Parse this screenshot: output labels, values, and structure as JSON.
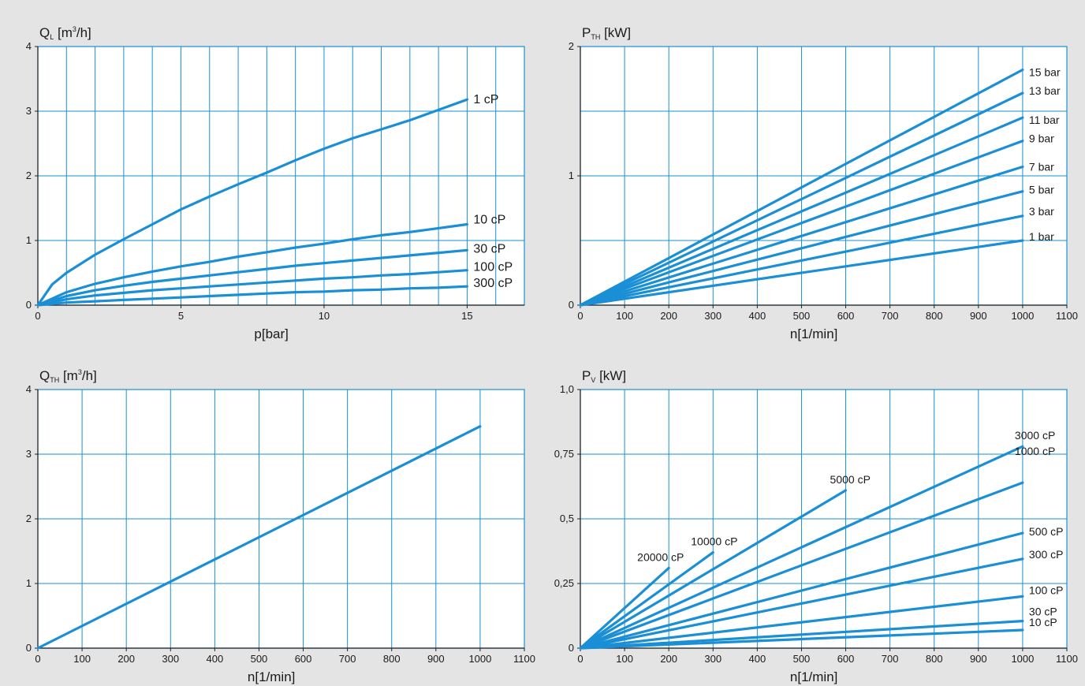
{
  "chart_data": [
    {
      "type": "line",
      "id": "ql-vs-p",
      "title": "",
      "ylabel": {
        "main": "Q",
        "sub": "L",
        "rest_pre": " [m",
        "sup": "3",
        "rest_post": "/h]"
      },
      "xlabel": "p[bar]",
      "xlim": [
        0,
        17
      ],
      "ylim": [
        0,
        4
      ],
      "x_ticks": [
        "0",
        "5",
        "10",
        "15"
      ],
      "x_tick_values": [
        0,
        5,
        10,
        15
      ],
      "y_ticks": [
        "0",
        "1",
        "2",
        "3",
        "4"
      ],
      "y_tick_values": [
        0,
        1,
        2,
        3,
        4
      ],
      "grid": {
        "x_step": 1,
        "y_step": 1
      },
      "label_font_px": 16,
      "series": [
        {
          "name": "1 cP",
          "points": [
            [
              0,
              0
            ],
            [
              0.5,
              0.32
            ],
            [
              1,
              0.5
            ],
            [
              2,
              0.78
            ],
            [
              3,
              1.02
            ],
            [
              4,
              1.25
            ],
            [
              5,
              1.48
            ],
            [
              6,
              1.68
            ],
            [
              7,
              1.87
            ],
            [
              8,
              2.05
            ],
            [
              9,
              2.24
            ],
            [
              10,
              2.42
            ],
            [
              11,
              2.58
            ],
            [
              12,
              2.72
            ],
            [
              13,
              2.86
            ],
            [
              14,
              3.02
            ],
            [
              15,
              3.18
            ]
          ]
        },
        {
          "name": "10 cP",
          "points": [
            [
              0,
              0
            ],
            [
              1,
              0.2
            ],
            [
              2,
              0.33
            ],
            [
              3,
              0.43
            ],
            [
              4,
              0.52
            ],
            [
              5,
              0.6
            ],
            [
              6,
              0.67
            ],
            [
              7,
              0.75
            ],
            [
              8,
              0.82
            ],
            [
              9,
              0.89
            ],
            [
              10,
              0.95
            ],
            [
              11,
              1.02
            ],
            [
              12,
              1.08
            ],
            [
              13,
              1.13
            ],
            [
              14,
              1.19
            ],
            [
              15,
              1.25
            ]
          ]
        },
        {
          "name": "30 cP",
          "points": [
            [
              0,
              0
            ],
            [
              1,
              0.14
            ],
            [
              2,
              0.23
            ],
            [
              3,
              0.3
            ],
            [
              4,
              0.36
            ],
            [
              5,
              0.41
            ],
            [
              6,
              0.46
            ],
            [
              7,
              0.51
            ],
            [
              8,
              0.56
            ],
            [
              9,
              0.61
            ],
            [
              10,
              0.65
            ],
            [
              11,
              0.69
            ],
            [
              12,
              0.73
            ],
            [
              13,
              0.77
            ],
            [
              14,
              0.81
            ],
            [
              15,
              0.85
            ]
          ]
        },
        {
          "name": "100 cP",
          "points": [
            [
              0,
              0
            ],
            [
              1,
              0.09
            ],
            [
              2,
              0.15
            ],
            [
              3,
              0.19
            ],
            [
              4,
              0.23
            ],
            [
              5,
              0.26
            ],
            [
              6,
              0.29
            ],
            [
              7,
              0.32
            ],
            [
              8,
              0.35
            ],
            [
              9,
              0.38
            ],
            [
              10,
              0.41
            ],
            [
              11,
              0.43
            ],
            [
              12,
              0.46
            ],
            [
              13,
              0.48
            ],
            [
              14,
              0.51
            ],
            [
              15,
              0.54
            ]
          ]
        },
        {
          "name": "300 cP",
          "points": [
            [
              0,
              0
            ],
            [
              1,
              0.04
            ],
            [
              2,
              0.06
            ],
            [
              3,
              0.08
            ],
            [
              4,
              0.1
            ],
            [
              5,
              0.12
            ],
            [
              6,
              0.14
            ],
            [
              7,
              0.16
            ],
            [
              8,
              0.18
            ],
            [
              9,
              0.2
            ],
            [
              10,
              0.21
            ],
            [
              11,
              0.23
            ],
            [
              12,
              0.24
            ],
            [
              13,
              0.26
            ],
            [
              14,
              0.27
            ],
            [
              15,
              0.29
            ]
          ]
        }
      ]
    },
    {
      "type": "line",
      "id": "pth-vs-n",
      "title": "",
      "ylabel": {
        "main": "P",
        "sub": "TH",
        "rest_pre": " [kW]",
        "sup": "",
        "rest_post": ""
      },
      "xlabel": "n[1/min]",
      "xlim": [
        0,
        1100
      ],
      "ylim": [
        0,
        2
      ],
      "x_ticks": [
        "0",
        "100",
        "200",
        "300",
        "400",
        "500",
        "600",
        "700",
        "800",
        "900",
        "1000",
        "1100"
      ],
      "x_tick_values": [
        0,
        100,
        200,
        300,
        400,
        500,
        600,
        700,
        800,
        900,
        1000,
        1100
      ],
      "y_ticks": [
        "0",
        "1",
        "2"
      ],
      "y_tick_values": [
        0,
        1,
        2
      ],
      "grid": {
        "x_step": 100,
        "y_step": 0.5
      },
      "label_font_px": 14,
      "series": [
        {
          "name": "15 bar",
          "points": [
            [
              0,
              0
            ],
            [
              1000,
              1.82
            ]
          ]
        },
        {
          "name": "13 bar",
          "points": [
            [
              0,
              0
            ],
            [
              1000,
              1.64
            ]
          ]
        },
        {
          "name": "11 bar",
          "points": [
            [
              0,
              0
            ],
            [
              1000,
              1.45
            ]
          ]
        },
        {
          "name": "9 bar",
          "points": [
            [
              0,
              0
            ],
            [
              1000,
              1.27
            ]
          ]
        },
        {
          "name": "7 bar",
          "points": [
            [
              0,
              0
            ],
            [
              1000,
              1.07
            ]
          ]
        },
        {
          "name": "5 bar",
          "points": [
            [
              0,
              0
            ],
            [
              1000,
              0.88
            ]
          ]
        },
        {
          "name": "3 bar",
          "points": [
            [
              0,
              0
            ],
            [
              1000,
              0.69
            ]
          ]
        },
        {
          "name": "1 bar",
          "points": [
            [
              0,
              0
            ],
            [
              1000,
              0.5
            ]
          ]
        }
      ]
    },
    {
      "type": "line",
      "id": "qth-vs-n",
      "title": "",
      "ylabel": {
        "main": "Q",
        "sub": "TH",
        "rest_pre": " [m",
        "sup": "3",
        "rest_post": "/h]"
      },
      "xlabel": "n[1/min]",
      "xlim": [
        0,
        1100
      ],
      "ylim": [
        0,
        4
      ],
      "x_ticks": [
        "0",
        "100",
        "200",
        "300",
        "400",
        "500",
        "600",
        "700",
        "800",
        "900",
        "1000",
        "1100"
      ],
      "x_tick_values": [
        0,
        100,
        200,
        300,
        400,
        500,
        600,
        700,
        800,
        900,
        1000,
        1100
      ],
      "y_ticks": [
        "0",
        "1",
        "2",
        "3",
        "4"
      ],
      "y_tick_values": [
        0,
        1,
        2,
        3,
        4
      ],
      "grid": {
        "x_step": 100,
        "y_step": 1
      },
      "label_font_px": 14,
      "series": [
        {
          "name": "",
          "points": [
            [
              0,
              0
            ],
            [
              1000,
              3.43
            ]
          ]
        }
      ]
    },
    {
      "type": "line",
      "id": "pv-vs-n",
      "title": "",
      "ylabel": {
        "main": "P",
        "sub": "V",
        "rest_pre": " [kW]",
        "sup": "",
        "rest_post": ""
      },
      "xlabel": "n[1/min]",
      "xlim": [
        0,
        1100
      ],
      "ylim": [
        0,
        1.0
      ],
      "x_ticks": [
        "0",
        "100",
        "200",
        "300",
        "400",
        "500",
        "600",
        "700",
        "800",
        "900",
        "1000",
        "1100"
      ],
      "x_tick_values": [
        0,
        100,
        200,
        300,
        400,
        500,
        600,
        700,
        800,
        900,
        1000,
        1100
      ],
      "y_ticks": [
        "0",
        "0,25",
        "0,5",
        "0,75",
        "1,0"
      ],
      "y_tick_values": [
        0,
        0.25,
        0.5,
        0.75,
        1.0
      ],
      "grid": {
        "x_step": 100,
        "y_step": 0.25
      },
      "label_font_px": 14,
      "series": [
        {
          "name": "20000 cP",
          "points": [
            [
              0,
              0
            ],
            [
              200,
              0.31
            ]
          ]
        },
        {
          "name": "10000 cP",
          "points": [
            [
              0,
              0
            ],
            [
              300,
              0.37
            ]
          ]
        },
        {
          "name": "5000 cP",
          "points": [
            [
              0,
              0
            ],
            [
              600,
              0.61
            ]
          ]
        },
        {
          "name": "3000 cP",
          "points": [
            [
              0,
              0
            ],
            [
              1000,
              0.78
            ]
          ]
        },
        {
          "name": "1000 cP",
          "points": [
            [
              0,
              0
            ],
            [
              1000,
              0.64
            ]
          ]
        },
        {
          "name": "500 cP",
          "points": [
            [
              0,
              0
            ],
            [
              1000,
              0.445
            ]
          ]
        },
        {
          "name": "300 cP",
          "points": [
            [
              0,
              0
            ],
            [
              1000,
              0.345
            ]
          ]
        },
        {
          "name": "100 cP",
          "points": [
            [
              0,
              0
            ],
            [
              1000,
              0.2
            ]
          ]
        },
        {
          "name": "30 cP",
          "points": [
            [
              0,
              0
            ],
            [
              1000,
              0.105
            ]
          ]
        },
        {
          "name": "10 cP",
          "points": [
            [
              0,
              0
            ],
            [
              1000,
              0.07
            ]
          ]
        }
      ]
    }
  ]
}
